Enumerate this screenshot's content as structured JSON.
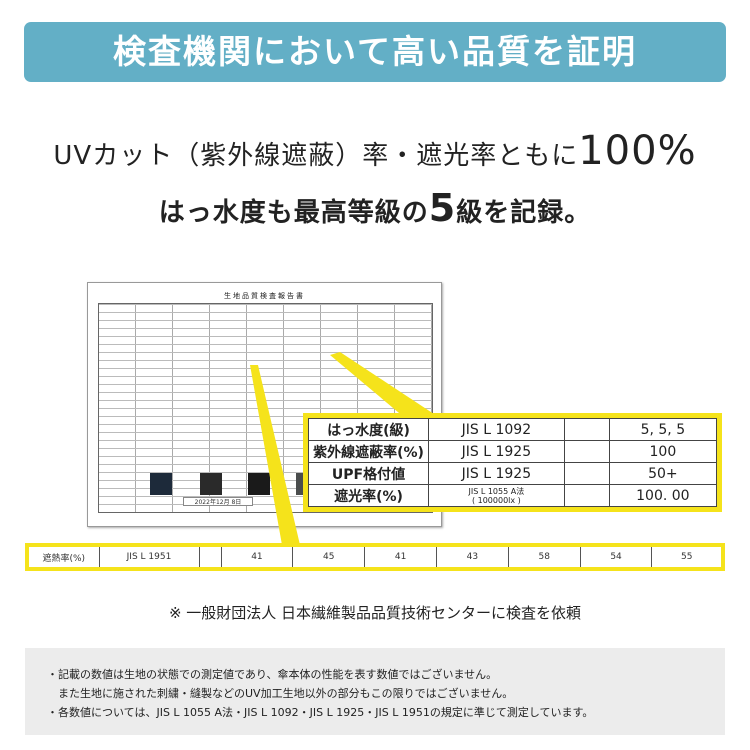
{
  "header": {
    "title": "検査機関において高い品質を証明"
  },
  "headline": {
    "line1_text": "UVカット（紫外線遮蔽）率・遮光率ともに",
    "line1_big": "100%",
    "line2_pre": "はっ水度も最高等級の",
    "line2_big": "5",
    "line2_post": "級を記録。"
  },
  "document": {
    "title": "生地品質検査報告書",
    "date": "2022年12月 8日"
  },
  "callout": {
    "rows": [
      {
        "label": "はっ水度(級)",
        "method": "JIS L 1092",
        "value": "5, 5, 5"
      },
      {
        "label": "紫外線遮蔽率(%)",
        "method": "JIS L 1925",
        "value": "100"
      },
      {
        "label": "UPF格付値",
        "method": "JIS L 1925",
        "value": "50+"
      },
      {
        "label": "遮光率(%)",
        "method": "JIS L 1055 A法\n( 100000lx )",
        "value": "100. 00"
      }
    ]
  },
  "strip": {
    "label": "遮熱率(%)",
    "method": "JIS L 1951",
    "values": [
      "41",
      "45",
      "41",
      "43",
      "58",
      "54",
      "55"
    ]
  },
  "footnote": "※ 一般財団法人 日本繊維製品品質技術センターに検査を依頼",
  "notes": [
    "・記載の数値は生地の状態での測定値であり、傘本体の性能を表す数値ではございません。",
    "　また生地に施された刺繍・縫製などのUV加工生地以外の部分もこの限りではございません。",
    "・各数値については、JIS L 1055 A法・JIS L 1092・JIS L 1925・JIS L 1951の規定に準じて測定しています。"
  ],
  "colors": {
    "header": "#63afc6",
    "highlight": "#f5e31b",
    "panel": "#ececec"
  }
}
